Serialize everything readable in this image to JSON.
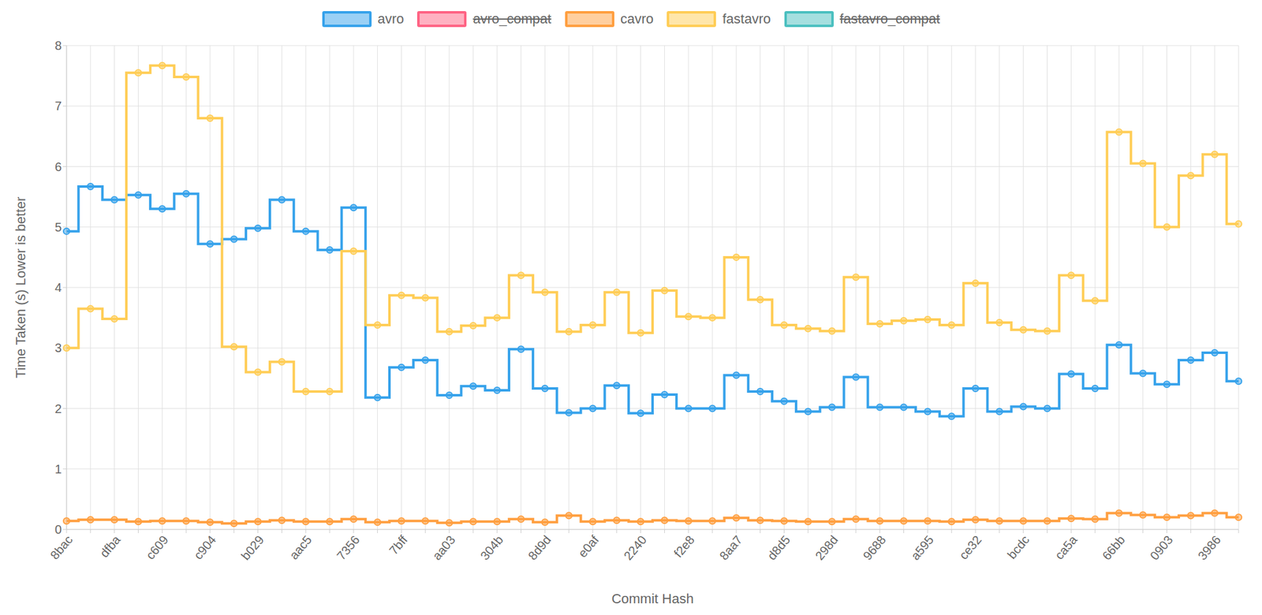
{
  "chart_data": {
    "type": "line",
    "x_label": "Commit Hash",
    "y_label": "Time Taken (s) Lower is better",
    "categories": [
      "8bac",
      null,
      "dfba",
      null,
      "c609",
      null,
      "c904",
      null,
      "b029",
      null,
      "aac5",
      null,
      "7356",
      null,
      "7bff",
      null,
      "aa03",
      null,
      "304b",
      null,
      "8d9d",
      null,
      "e0af",
      null,
      "2240",
      null,
      "f2e8",
      null,
      "8aa7",
      null,
      "d8d5",
      null,
      "298d",
      null,
      "9688",
      null,
      "a595",
      null,
      "ce32",
      null,
      "bcdc",
      null,
      "ca5a",
      null,
      "66bb",
      null,
      "0903",
      null,
      "3986",
      null
    ],
    "series": [
      {
        "name": "avro",
        "color": "#36a2eb",
        "values": [
          4.93,
          5.67,
          5.45,
          5.53,
          5.3,
          5.55,
          4.72,
          4.8,
          4.98,
          5.45,
          4.93,
          4.62,
          5.32,
          2.18,
          2.68,
          2.8,
          2.22,
          2.37,
          2.3,
          2.98,
          2.33,
          1.93,
          2.0,
          2.38,
          1.92,
          2.23,
          2.0,
          2.0,
          2.55,
          2.28,
          2.12,
          1.95,
          2.02,
          2.52,
          2.02,
          2.02,
          1.95,
          1.87,
          2.33,
          1.95,
          2.03,
          2.0,
          2.57,
          2.33,
          3.05,
          2.58,
          2.4,
          2.8,
          2.92,
          2.45
        ]
      },
      {
        "name": "avro_compat",
        "color": "#ff6384",
        "values": [
          null,
          null,
          null,
          null,
          null,
          null,
          null,
          null,
          null,
          null,
          null,
          null,
          null,
          null,
          null,
          null,
          null,
          null,
          null,
          null,
          null,
          null,
          null,
          null,
          null,
          null,
          null,
          null,
          null,
          null,
          null,
          null,
          null,
          null,
          null,
          null,
          null,
          null,
          null,
          null,
          null,
          null,
          null,
          null,
          null,
          null,
          null,
          null,
          null,
          null
        ]
      },
      {
        "name": "cavro",
        "color": "#ff9f40",
        "values": [
          0.14,
          0.16,
          0.16,
          0.13,
          0.14,
          0.14,
          0.12,
          0.1,
          0.13,
          0.15,
          0.13,
          0.13,
          0.17,
          0.12,
          0.14,
          0.14,
          0.11,
          0.13,
          0.13,
          0.17,
          0.12,
          0.23,
          0.13,
          0.15,
          0.13,
          0.15,
          0.14,
          0.14,
          0.19,
          0.15,
          0.14,
          0.13,
          0.13,
          0.17,
          0.14,
          0.14,
          0.14,
          0.13,
          0.16,
          0.14,
          0.14,
          0.14,
          0.18,
          0.17,
          0.27,
          0.24,
          0.2,
          0.23,
          0.27,
          0.2
        ]
      },
      {
        "name": "fastavro",
        "color": "#ffcd56",
        "values": [
          3.0,
          3.65,
          3.48,
          7.55,
          7.67,
          7.48,
          6.8,
          3.02,
          2.6,
          2.77,
          2.28,
          2.28,
          4.6,
          3.38,
          3.87,
          3.83,
          3.27,
          3.37,
          3.5,
          4.2,
          3.92,
          3.27,
          3.38,
          3.92,
          3.25,
          3.95,
          3.52,
          3.5,
          4.5,
          3.8,
          3.38,
          3.32,
          3.28,
          4.17,
          3.4,
          3.45,
          3.47,
          3.38,
          4.07,
          3.42,
          3.3,
          3.28,
          4.2,
          3.78,
          6.57,
          6.05,
          5.0,
          5.85,
          6.2,
          5.05
        ]
      },
      {
        "name": "fastavro_compat",
        "color": "#4bc0c0",
        "values": [
          null,
          null,
          null,
          null,
          null,
          null,
          null,
          null,
          null,
          null,
          null,
          null,
          null,
          null,
          null,
          null,
          null,
          null,
          null,
          null,
          null,
          null,
          null,
          null,
          null,
          null,
          null,
          null,
          null,
          null,
          null,
          null,
          null,
          null,
          null,
          null,
          null,
          null,
          null,
          null,
          null,
          null,
          null,
          null,
          null,
          null,
          null,
          null,
          null,
          null
        ]
      }
    ],
    "ylim": [
      0,
      8
    ],
    "yticks": [
      0,
      1,
      2,
      3,
      4,
      5,
      6,
      7,
      8
    ],
    "grid": true,
    "legend": "top",
    "line_style": "step",
    "marker": "circle"
  }
}
